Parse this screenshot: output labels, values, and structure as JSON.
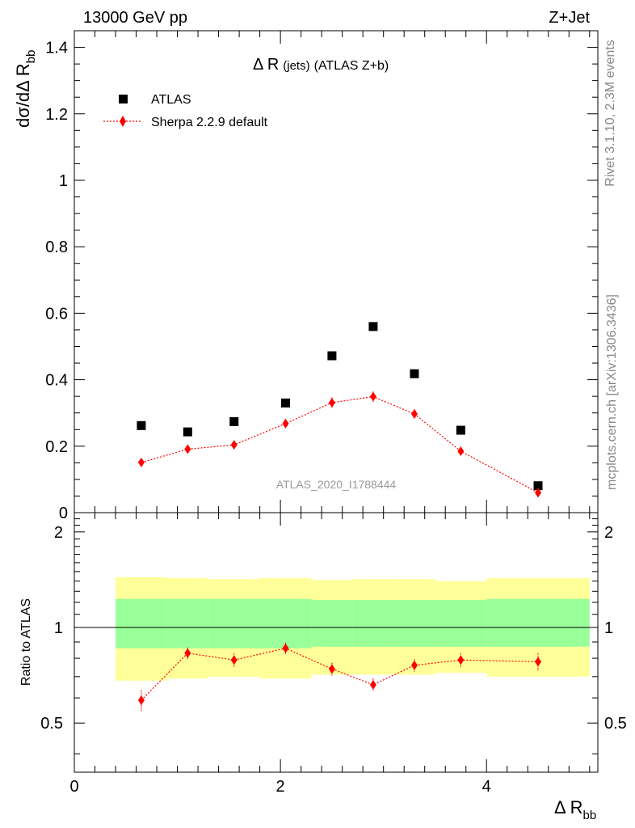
{
  "header": {
    "left": "13000 GeV pp",
    "right": "Z+Jet"
  },
  "side_labels": {
    "rivet": "Rivet 3.1.10,  2.3M events",
    "mcplots": "mcplots.cern.ch [arXiv:1306.3436]"
  },
  "chart_data": {
    "type": "scatter",
    "title_main": "Δ R",
    "title_sub": "(jets)",
    "title_tail": "(ATLAS Z+b)",
    "watermark": "ATLAS_2020_I1788444",
    "ylabel_main": "dσ/dΔ R",
    "ylabel_sub": "bb",
    "xlabel_main": "Δ R",
    "xlabel_sub": "bb",
    "ratio_ylabel": "Ratio to ATLAS",
    "xlim": [
      0,
      5.08
    ],
    "ylim": [
      0,
      1.45
    ],
    "ratio_ylim": [
      0.35,
      2.3
    ],
    "grid": false,
    "legend_position": "top-left",
    "x_ticks": [
      0,
      2,
      4
    ],
    "x_tick_labels": [
      "0",
      "2",
      "4"
    ],
    "y_ticks": [
      0,
      0.2,
      0.4,
      0.6,
      0.8,
      1,
      1.2,
      1.4
    ],
    "y_tick_labels": [
      "0",
      "0.2",
      "0.4",
      "0.6",
      "0.8",
      "1",
      "1.2",
      "1.4"
    ],
    "ratio_ticks": [
      0.5,
      1,
      2
    ],
    "ratio_tick_labels": [
      "0.5",
      "1",
      "2"
    ],
    "bins": [
      {
        "low": 0.4,
        "high": 0.9
      },
      {
        "low": 0.9,
        "high": 1.3
      },
      {
        "low": 1.3,
        "high": 1.8
      },
      {
        "low": 1.8,
        "high": 2.3
      },
      {
        "low": 2.3,
        "high": 2.7
      },
      {
        "low": 2.7,
        "high": 3.1
      },
      {
        "low": 3.1,
        "high": 3.5
      },
      {
        "low": 3.5,
        "high": 4.0
      },
      {
        "low": 4.0,
        "high": 5.0
      }
    ],
    "series": [
      {
        "name": "ATLAS",
        "color": "#000000",
        "marker": "square",
        "x": [
          0.65,
          1.1,
          1.55,
          2.05,
          2.5,
          2.9,
          3.3,
          3.75,
          4.5
        ],
        "y": [
          0.262,
          0.243,
          0.274,
          0.33,
          0.472,
          0.56,
          0.418,
          0.248,
          0.081
        ]
      },
      {
        "name": "Sherpa 2.2.9 default",
        "color": "#ff0000",
        "marker": "diamond",
        "line": "dotted",
        "x": [
          0.65,
          1.1,
          1.55,
          2.05,
          2.5,
          2.9,
          3.3,
          3.75,
          4.5
        ],
        "y": [
          0.151,
          0.191,
          0.204,
          0.268,
          0.331,
          0.349,
          0.297,
          0.185,
          0.06
        ],
        "yerr": [
          0.01,
          0.012,
          0.012,
          0.014,
          0.016,
          0.016,
          0.015,
          0.011,
          0.007
        ],
        "ratio": [
          0.59,
          0.83,
          0.79,
          0.86,
          0.74,
          0.66,
          0.76,
          0.79,
          0.78
        ],
        "ratio_err": [
          0.045,
          0.035,
          0.04,
          0.035,
          0.035,
          0.03,
          0.035,
          0.04,
          0.05
        ]
      }
    ],
    "bands": {
      "inner_color": "#99ff99",
      "outer_color": "#ffff99",
      "inner_low": [
        0.86,
        0.86,
        0.86,
        0.86,
        0.87,
        0.87,
        0.87,
        0.87,
        0.87
      ],
      "inner_high": [
        1.23,
        1.23,
        1.23,
        1.23,
        1.22,
        1.22,
        1.22,
        1.22,
        1.23
      ],
      "outer_low": [
        0.68,
        0.69,
        0.7,
        0.69,
        0.71,
        0.71,
        0.71,
        0.72,
        0.7
      ],
      "outer_high": [
        1.44,
        1.43,
        1.42,
        1.43,
        1.41,
        1.42,
        1.42,
        1.4,
        1.43
      ]
    }
  }
}
